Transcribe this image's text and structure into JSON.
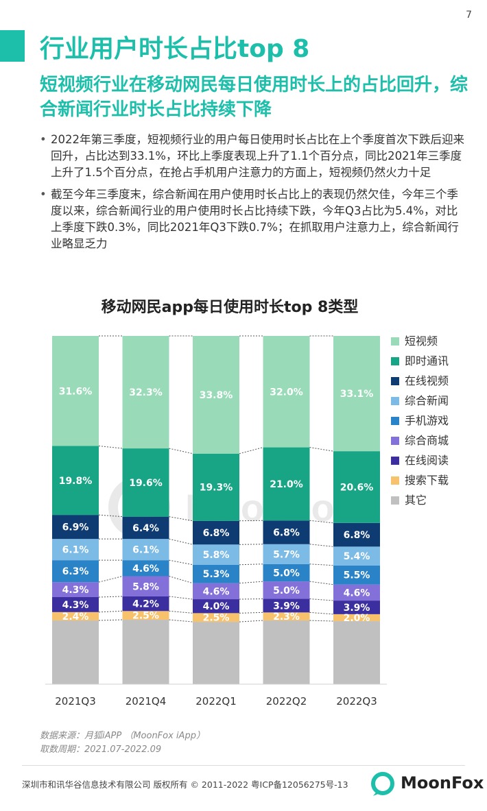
{
  "page_number": "7",
  "title": "行业用户时长占比top 8",
  "subtitle": "短视频行业在移动网民每日使用时长上的占比回升，综合新闻行业时长占比持续下降",
  "bullets": [
    "2022年第三季度，短视频行业的用户每日使用时长占比在上个季度首次下跌后迎来回升，占比达到33.1%，环比上季度表现上升了1.1个百分点，同比2021年三季度上升了1.5个百分点，在抢占手机用户注意力的方面上，短视频仍然火力十足",
    "截至今年三季度末，综合新闻在用户使用时长占比上的表现仍然欠佳，今年三个季度以来，综合新闻行业的用户使用时长占比持续下跌，今年Q3占比为5.4%，对比上季度下跌0.3%，同比2021年Q3下跌0.7%；在抓取用户注意力上，综合新闻行业略显乏力"
  ],
  "chart_data": {
    "type": "bar",
    "stacked": true,
    "percent_stacked": true,
    "title": "移动网民app每日使用时长top 8类型",
    "xlabel": "",
    "ylabel": "",
    "legend_position": "right",
    "categories": [
      "2021Q3",
      "2021Q4",
      "2022Q1",
      "2022Q2",
      "2022Q3"
    ],
    "series": [
      {
        "name": "其它",
        "color": "#c0c0c0",
        "values": [
          null,
          null,
          null,
          null,
          null
        ],
        "labels": [
          "",
          "",
          "",
          "",
          ""
        ]
      },
      {
        "name": "搜索下载",
        "color": "#f7c26b",
        "values": [
          2.4,
          2.5,
          2.5,
          2.3,
          2.0
        ],
        "labels": [
          "2.4%",
          "2.5%",
          "2.5%",
          "2.3%",
          "2.0%"
        ]
      },
      {
        "name": "在线阅读",
        "color": "#3b2e9e",
        "values": [
          4.3,
          4.2,
          4.0,
          3.9,
          3.9
        ],
        "labels": [
          "4.3%",
          "4.2%",
          "4.0%",
          "3.9%",
          "3.9%"
        ]
      },
      {
        "name": "综合商城",
        "color": "#8470d9",
        "values": [
          4.3,
          5.8,
          4.6,
          5.0,
          4.6
        ],
        "labels": [
          "4.3%",
          "5.8%",
          "4.6%",
          "5.0%",
          "4.6%"
        ]
      },
      {
        "name": "手机游戏",
        "color": "#2a82c7",
        "values": [
          6.3,
          4.6,
          5.3,
          5.0,
          5.5
        ],
        "labels": [
          "6.3%",
          "4.6%",
          "5.3%",
          "5.0%",
          "5.5%"
        ]
      },
      {
        "name": "综合新闻",
        "color": "#7cbbe6",
        "values": [
          6.1,
          6.1,
          5.8,
          5.7,
          5.4
        ],
        "labels": [
          "6.1%",
          "6.1%",
          "5.8%",
          "5.7%",
          "5.4%"
        ]
      },
      {
        "name": "在线视频",
        "color": "#0f3b73",
        "values": [
          6.9,
          6.4,
          6.8,
          6.8,
          6.8
        ],
        "labels": [
          "6.9%",
          "6.4%",
          "6.8%",
          "6.8%",
          "6.8%"
        ]
      },
      {
        "name": "即时通讯",
        "color": "#17a585",
        "values": [
          19.8,
          19.6,
          19.3,
          21.0,
          20.6
        ],
        "labels": [
          "19.8%",
          "19.6%",
          "19.3%",
          "21.0%",
          "20.6%"
        ]
      },
      {
        "name": "短视频",
        "color": "#99dbb8",
        "values": [
          31.6,
          32.3,
          33.8,
          32.0,
          33.1
        ],
        "labels": [
          "31.6%",
          "32.3%",
          "33.8%",
          "32.0%",
          "33.1%"
        ]
      }
    ],
    "legend_order": [
      "短视频",
      "即时通讯",
      "在线视频",
      "综合新闻",
      "手机游戏",
      "综合商城",
      "在线阅读",
      "搜索下载",
      "其它"
    ]
  },
  "source": "数据来源：月狐iAPP （MoonFox iApp）",
  "period": "取数周期：2021.07-2022.09",
  "watermark": "MoonFox",
  "copyright": "深圳市和讯华谷信息技术有限公司 版权所有 © 2011-2022 粤ICP备12056275号-13",
  "brand_name": "MoonFox",
  "colors": {
    "accent": "#1dbfaa"
  }
}
